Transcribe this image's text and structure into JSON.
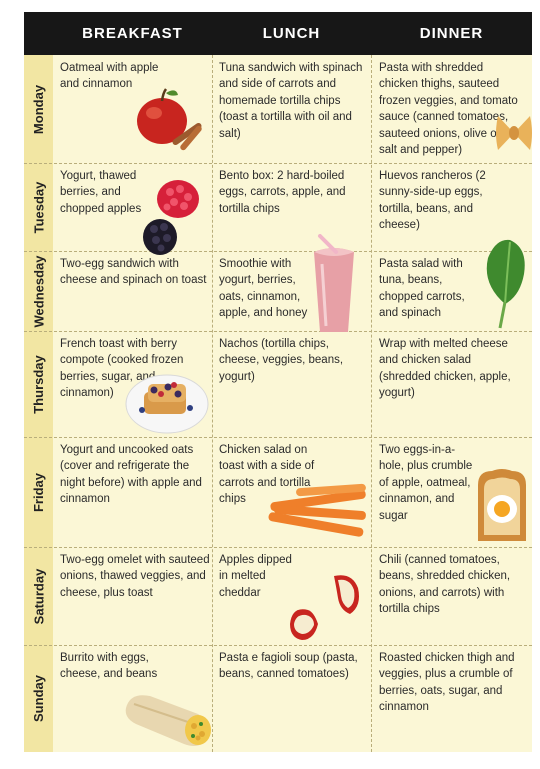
{
  "headers": {
    "breakfast": "BREAKFAST",
    "lunch": "LUNCH",
    "dinner": "DINNER"
  },
  "days": [
    {
      "day": "Monday",
      "breakfast": "Oatmeal with apple and cinnamon",
      "lunch": "Tuna sandwich with spinach and side of carrots and homemade tortilla chips (toast a tortilla with oil and salt)",
      "dinner": "Pasta with shredded chicken thighs, sauteed frozen veggies, and tomato sauce (canned tomatoes, sauteed onions, olive oil, salt and pepper)"
    },
    {
      "day": "Tuesday",
      "breakfast": "Yogurt, thawed berries, and chopped apples",
      "lunch": "Bento box: 2 hard-boiled eggs, carrots, apple, and tortilla chips",
      "dinner": "Huevos rancheros (2 sunny-side-up eggs, tortilla, beans, and cheese)"
    },
    {
      "day": "Wednesday",
      "breakfast": "Two-egg sandwich with cheese and spinach on toast",
      "lunch": "Smoothie with yogurt, berries, oats, cinnamon, apple, and honey",
      "dinner": "Pasta salad with tuna, beans, chopped carrots, and spinach"
    },
    {
      "day": "Thursday",
      "breakfast": "French toast with berry compote (cooked frozen berries, sugar, and cinnamon)",
      "lunch": "Nachos (tortilla chips, cheese, veggies, beans, yogurt)",
      "dinner": "Wrap with melted cheese and chicken salad (shredded chicken, apple, yogurt)"
    },
    {
      "day": "Friday",
      "breakfast": "Yogurt and uncooked oats (cover and refrigerate the night before) with apple and cinnamon",
      "lunch": "Chicken salad on toast with a side of carrots and tortilla chips",
      "dinner": "Two eggs-in-a-hole, plus crumble of apple, oatmeal, cinnamon, and sugar"
    },
    {
      "day": "Saturday",
      "breakfast": "Two-egg omelet with sauteed onions, thawed veggies, and cheese, plus toast",
      "lunch": "Apples dipped in melted cheddar",
      "dinner": "Chili (canned tomatoes, beans, shredded chicken, onions, and carrots) with tortilla chips"
    },
    {
      "day": "Sunday",
      "breakfast": "Burrito with eggs, cheese, and beans",
      "lunch": "Pasta e fagioli soup (pasta, beans, canned tomatoes)",
      "dinner": "Roasted chicken thigh and veggies, plus a crumble of berries, oats, sugar, and cinnamon"
    }
  ],
  "images": [
    "apple-cinnamon-icon",
    "farfalle-pasta-icon",
    "raspberry-blackberry-icon",
    "smoothie-glass-icon",
    "spinach-leaf-icon",
    "french-toast-plate-icon",
    "carrot-sticks-icon",
    "egg-in-toast-icon",
    "apple-slice-icon",
    "burrito-icon"
  ],
  "colors": {
    "header": "#171717",
    "day_band": "#f2e6a3",
    "cell": "#fbf7d6",
    "divider": "#b9ae7b"
  }
}
